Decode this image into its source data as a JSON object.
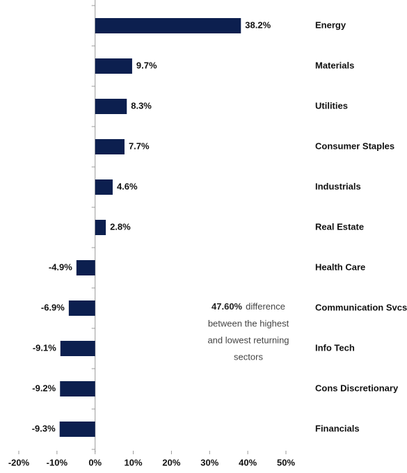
{
  "chart_data": {
    "type": "horizontal_bar",
    "categories": [
      "Energy",
      "Materials",
      "Utilities",
      "Consumer Staples",
      "Industrials",
      "Real Estate",
      "Health Care",
      "Communication Svcs",
      "Info Tech",
      "Cons Discretionary",
      "Financials"
    ],
    "values": [
      38.2,
      9.7,
      8.3,
      7.7,
      4.6,
      2.8,
      -4.9,
      -6.9,
      -9.1,
      -9.2,
      -9.3
    ],
    "value_labels": [
      "38.2%",
      "9.7%",
      "8.3%",
      "7.7%",
      "4.6%",
      "2.8%",
      "-4.9%",
      "-6.9%",
      "-9.1%",
      "-9.2%",
      "-9.3%"
    ],
    "color": "#0c1f4f",
    "xlim": [
      -20,
      50
    ],
    "xticks": [
      {
        "value": -20,
        "label": "-20%"
      },
      {
        "value": -10,
        "label": "-10%"
      },
      {
        "value": 0,
        "label": "0%"
      },
      {
        "value": 10,
        "label": "10%"
      },
      {
        "value": 20,
        "label": "20%"
      },
      {
        "value": 30,
        "label": "30%"
      },
      {
        "value": 40,
        "label": "40%"
      },
      {
        "value": 50,
        "label": "50%"
      }
    ],
    "annotation": {
      "highlight": "47.60%",
      "lines": [
        "difference",
        "between the highest",
        "and lowest returning",
        "sectors"
      ]
    }
  }
}
